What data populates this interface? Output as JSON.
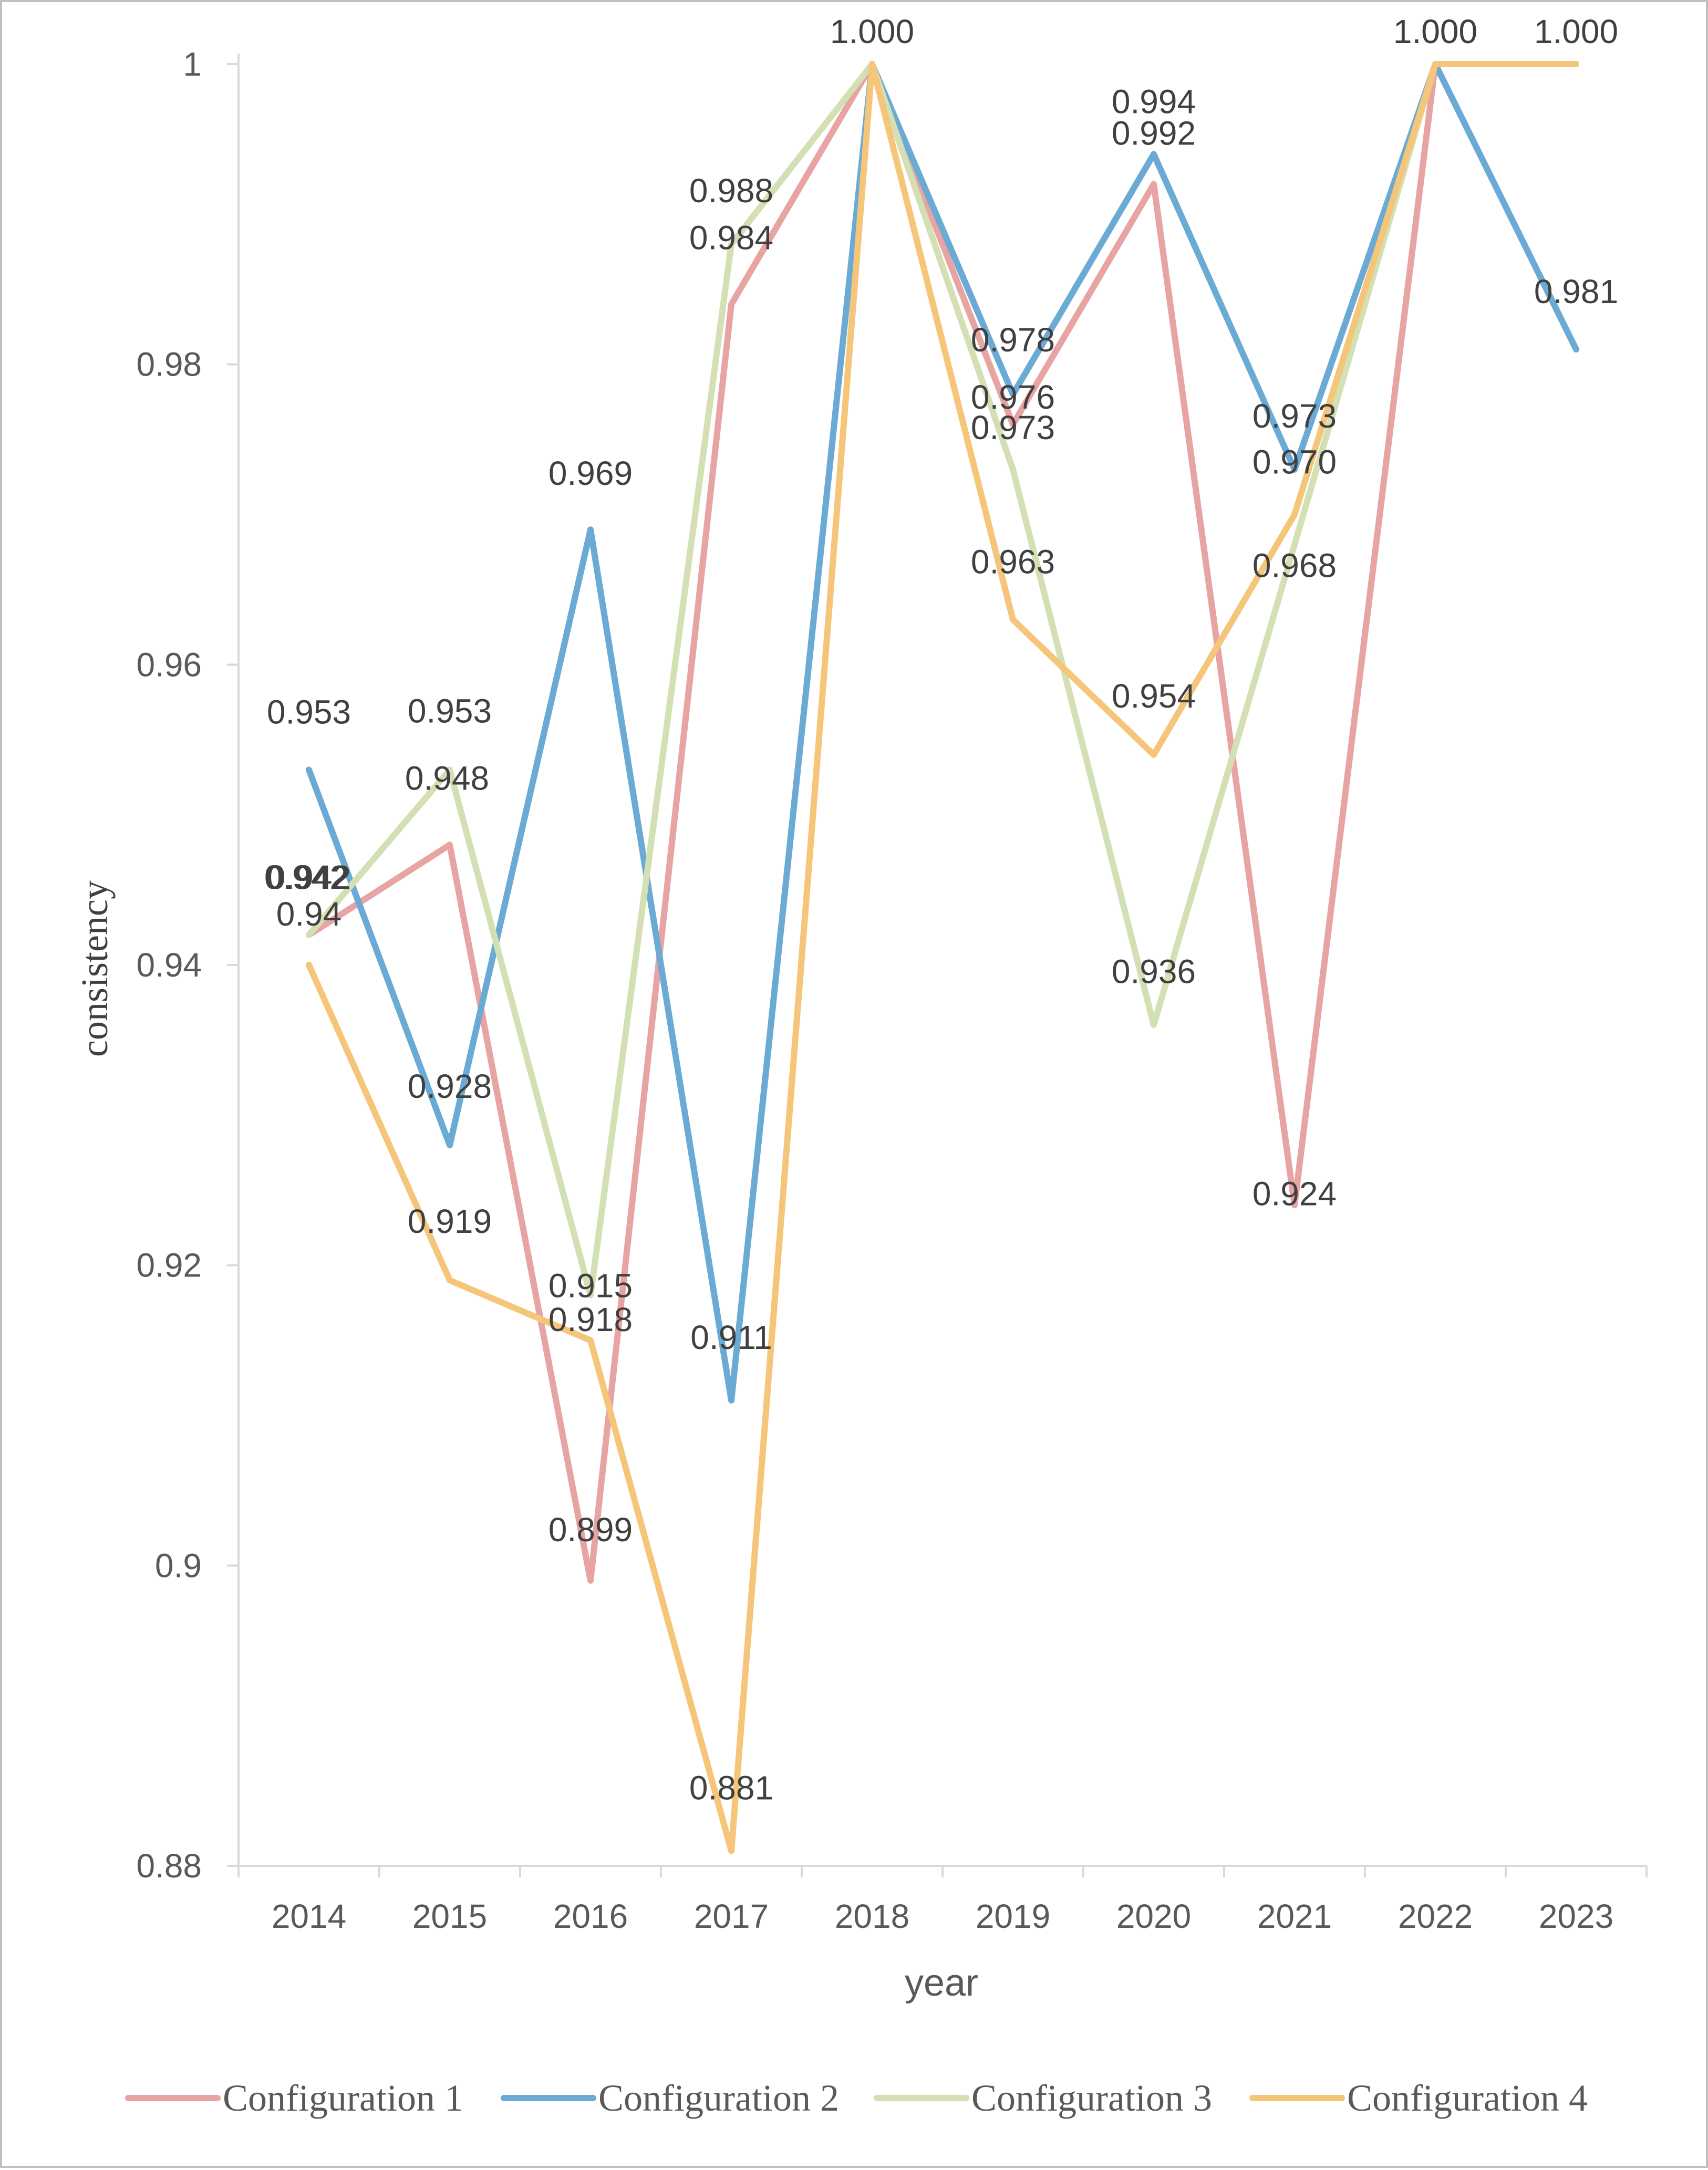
{
  "chart_data": {
    "type": "line",
    "title": "",
    "xlabel": "year",
    "ylabel": "consistency",
    "ylim": [
      0.88,
      1.0
    ],
    "yticks": [
      "0.88",
      "0.9",
      "0.92",
      "0.94",
      "0.96",
      "0.98",
      "1"
    ],
    "categories": [
      "2014",
      "2015",
      "2016",
      "2017",
      "2018",
      "2019",
      "2020",
      "2021",
      "2022",
      "2023"
    ],
    "grid": false,
    "legend_position": "bottom",
    "series": [
      {
        "name": "Configuration 1",
        "color": "#e8a3a3",
        "values": [
          0.942,
          0.948,
          0.899,
          0.984,
          1.0,
          0.976,
          0.992,
          0.924,
          1.0,
          null
        ],
        "labels": [
          "0.942",
          "0.948",
          "0.899",
          "0.984",
          "1.000",
          "0.976",
          "0.992",
          "0.924",
          "1.000",
          null
        ]
      },
      {
        "name": "Configuration 2",
        "color": "#6baad4",
        "values": [
          0.953,
          0.928,
          0.969,
          0.911,
          1.0,
          0.978,
          0.994,
          0.973,
          1.0,
          0.981
        ],
        "labels": [
          "0.953",
          "0.928",
          "0.969",
          "0.911",
          "1.000",
          "0.978",
          "0.994",
          "0.973",
          "1.000",
          "0.981"
        ]
      },
      {
        "name": "Configuration 3",
        "color": "#d3e0b4",
        "values": [
          0.942,
          0.953,
          0.918,
          0.988,
          1.0,
          0.973,
          0.936,
          0.968,
          1.0,
          null
        ],
        "labels": [
          "0.942",
          "0.953",
          "0.918",
          "0.988",
          "1.000",
          "0.973",
          "0.936",
          "0.968",
          "1.000",
          null
        ]
      },
      {
        "name": "Configuration 4",
        "color": "#f5c57a",
        "values": [
          0.94,
          0.919,
          0.915,
          0.881,
          1.0,
          0.963,
          0.954,
          0.97,
          1.0,
          1.0
        ],
        "labels": [
          "0.94",
          "0.919",
          "0.915",
          "0.881",
          "1.000",
          "0.963",
          "0.954",
          "0.970",
          "1.000",
          "1.000"
        ]
      }
    ]
  }
}
